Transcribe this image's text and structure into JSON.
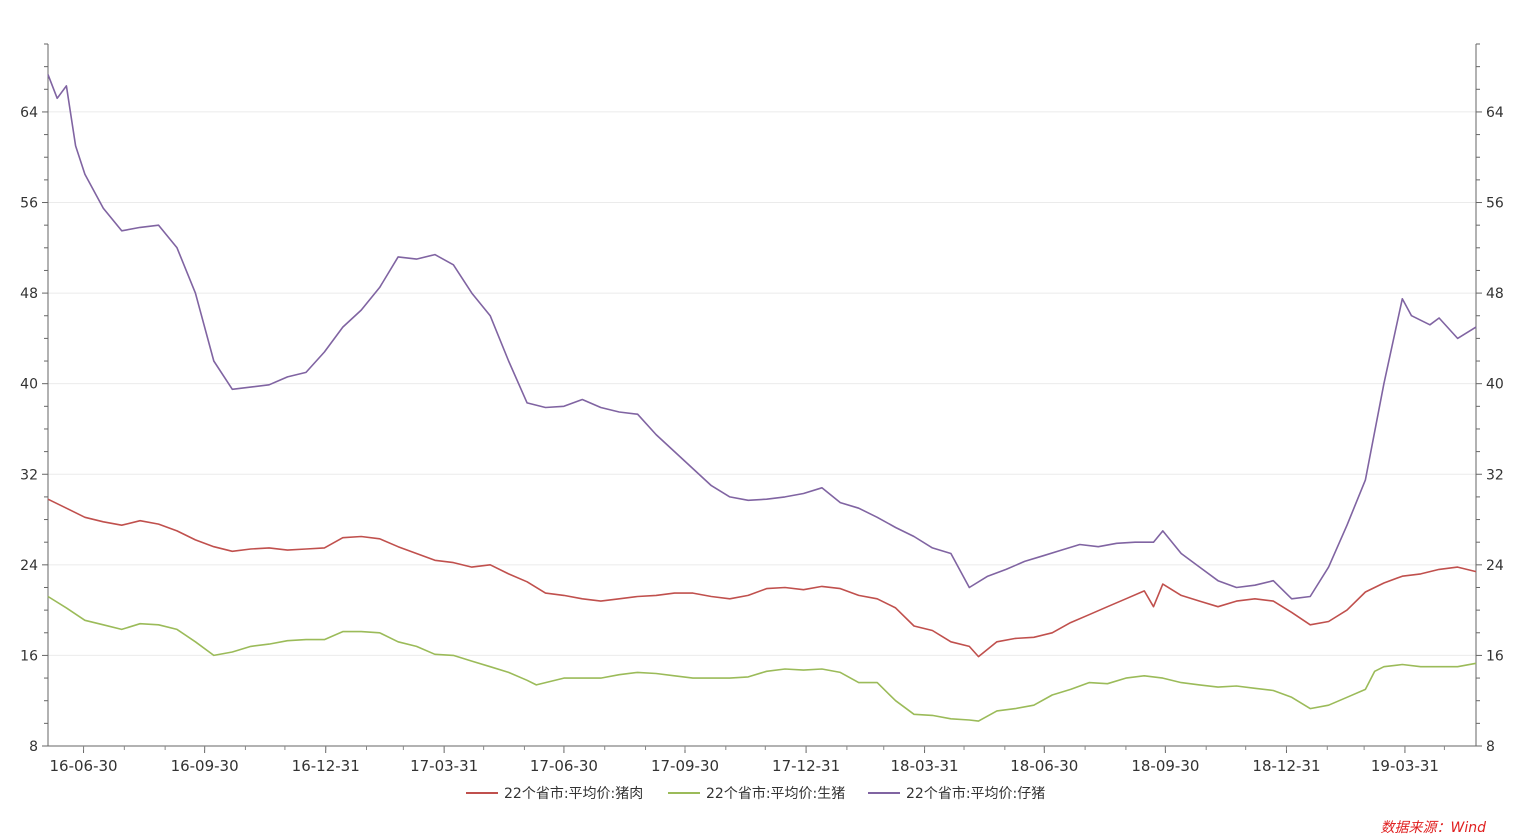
{
  "chart_data": {
    "type": "line",
    "title": "",
    "xlabel": "",
    "ylabel": "",
    "ylim": [
      8,
      70
    ],
    "y_ticks": [
      8,
      16,
      24,
      32,
      40,
      48,
      56,
      64
    ],
    "x_range": [
      "2016-06-03",
      "2019-05-24"
    ],
    "x_tick_labels": [
      {
        "date": "2016-06-30",
        "label": "16-06-30"
      },
      {
        "date": "2016-09-30",
        "label": "16-09-30"
      },
      {
        "date": "2016-12-31",
        "label": "16-12-31"
      },
      {
        "date": "2017-03-31",
        "label": "17-03-31"
      },
      {
        "date": "2017-06-30",
        "label": "17-06-30"
      },
      {
        "date": "2017-09-30",
        "label": "17-09-30"
      },
      {
        "date": "2017-12-31",
        "label": "17-12-31"
      },
      {
        "date": "2018-03-31",
        "label": "18-03-31"
      },
      {
        "date": "2018-06-30",
        "label": "18-06-30"
      },
      {
        "date": "2018-09-30",
        "label": "18-09-30"
      },
      {
        "date": "2018-12-31",
        "label": "18-12-31"
      },
      {
        "date": "2019-03-31",
        "label": "19-03-31"
      }
    ],
    "grid": true,
    "legend_position": "bottom",
    "source_note": "数据来源：Wind",
    "series": [
      {
        "name": "22个省市:平均价:猪肉",
        "color": "#c0504d",
        "points": [
          [
            "2016-06-03",
            29.8
          ],
          [
            "2016-06-17",
            29.0
          ],
          [
            "2016-07-01",
            28.2
          ],
          [
            "2016-07-15",
            27.8
          ],
          [
            "2016-07-29",
            27.5
          ],
          [
            "2016-08-12",
            27.9
          ],
          [
            "2016-08-26",
            27.6
          ],
          [
            "2016-09-09",
            27.0
          ],
          [
            "2016-09-23",
            26.2
          ],
          [
            "2016-10-07",
            25.6
          ],
          [
            "2016-10-21",
            25.2
          ],
          [
            "2016-11-04",
            25.4
          ],
          [
            "2016-11-18",
            25.5
          ],
          [
            "2016-12-02",
            25.3
          ],
          [
            "2016-12-16",
            25.4
          ],
          [
            "2016-12-30",
            25.5
          ],
          [
            "2017-01-13",
            26.4
          ],
          [
            "2017-01-27",
            26.5
          ],
          [
            "2017-02-10",
            26.3
          ],
          [
            "2017-02-24",
            25.6
          ],
          [
            "2017-03-10",
            25.0
          ],
          [
            "2017-03-24",
            24.4
          ],
          [
            "2017-04-07",
            24.2
          ],
          [
            "2017-04-21",
            23.8
          ],
          [
            "2017-05-05",
            24.0
          ],
          [
            "2017-05-19",
            23.2
          ],
          [
            "2017-06-02",
            22.5
          ],
          [
            "2017-06-16",
            21.5
          ],
          [
            "2017-06-30",
            21.3
          ],
          [
            "2017-07-14",
            21.0
          ],
          [
            "2017-07-28",
            20.8
          ],
          [
            "2017-08-11",
            21.0
          ],
          [
            "2017-08-25",
            21.2
          ],
          [
            "2017-09-08",
            21.3
          ],
          [
            "2017-09-22",
            21.5
          ],
          [
            "2017-10-06",
            21.5
          ],
          [
            "2017-10-20",
            21.2
          ],
          [
            "2017-11-03",
            21.0
          ],
          [
            "2017-11-17",
            21.3
          ],
          [
            "2017-12-01",
            21.9
          ],
          [
            "2017-12-15",
            22.0
          ],
          [
            "2017-12-29",
            21.8
          ],
          [
            "2018-01-12",
            22.1
          ],
          [
            "2018-01-26",
            21.9
          ],
          [
            "2018-02-09",
            21.3
          ],
          [
            "2018-02-23",
            21.0
          ],
          [
            "2018-03-09",
            20.2
          ],
          [
            "2018-03-23",
            18.6
          ],
          [
            "2018-04-06",
            18.2
          ],
          [
            "2018-04-20",
            17.2
          ],
          [
            "2018-05-04",
            16.8
          ],
          [
            "2018-05-11",
            15.9
          ],
          [
            "2018-05-25",
            17.2
          ],
          [
            "2018-06-08",
            17.5
          ],
          [
            "2018-06-22",
            17.6
          ],
          [
            "2018-07-06",
            18.0
          ],
          [
            "2018-07-20",
            18.9
          ],
          [
            "2018-08-03",
            19.6
          ],
          [
            "2018-08-17",
            20.3
          ],
          [
            "2018-08-31",
            21.0
          ],
          [
            "2018-09-14",
            21.7
          ],
          [
            "2018-09-21",
            20.3
          ],
          [
            "2018-09-28",
            22.3
          ],
          [
            "2018-10-12",
            21.3
          ],
          [
            "2018-10-26",
            20.8
          ],
          [
            "2018-11-09",
            20.3
          ],
          [
            "2018-11-23",
            20.8
          ],
          [
            "2018-12-07",
            21.0
          ],
          [
            "2018-12-21",
            20.8
          ],
          [
            "2019-01-04",
            19.8
          ],
          [
            "2019-01-18",
            18.7
          ],
          [
            "2019-02-01",
            19.0
          ],
          [
            "2019-02-15",
            20.0
          ],
          [
            "2019-03-01",
            21.6
          ],
          [
            "2019-03-15",
            22.4
          ],
          [
            "2019-03-29",
            23.0
          ],
          [
            "2019-04-12",
            23.2
          ],
          [
            "2019-04-26",
            23.6
          ],
          [
            "2019-05-10",
            23.8
          ],
          [
            "2019-05-24",
            23.4
          ]
        ]
      },
      {
        "name": "22个省市:平均价:生猪",
        "color": "#9bbb59",
        "points": [
          [
            "2016-06-03",
            21.2
          ],
          [
            "2016-06-17",
            20.2
          ],
          [
            "2016-07-01",
            19.1
          ],
          [
            "2016-07-15",
            18.7
          ],
          [
            "2016-07-29",
            18.3
          ],
          [
            "2016-08-12",
            18.8
          ],
          [
            "2016-08-26",
            18.7
          ],
          [
            "2016-09-09",
            18.3
          ],
          [
            "2016-09-23",
            17.2
          ],
          [
            "2016-10-07",
            16.0
          ],
          [
            "2016-10-21",
            16.3
          ],
          [
            "2016-11-04",
            16.8
          ],
          [
            "2016-11-18",
            17.0
          ],
          [
            "2016-12-02",
            17.3
          ],
          [
            "2016-12-16",
            17.4
          ],
          [
            "2016-12-30",
            17.4
          ],
          [
            "2017-01-13",
            18.1
          ],
          [
            "2017-01-27",
            18.1
          ],
          [
            "2017-02-10",
            18.0
          ],
          [
            "2017-02-24",
            17.2
          ],
          [
            "2017-03-10",
            16.8
          ],
          [
            "2017-03-24",
            16.1
          ],
          [
            "2017-04-07",
            16.0
          ],
          [
            "2017-04-21",
            15.5
          ],
          [
            "2017-05-05",
            15.0
          ],
          [
            "2017-05-19",
            14.5
          ],
          [
            "2017-06-02",
            13.8
          ],
          [
            "2017-06-09",
            13.4
          ],
          [
            "2017-06-16",
            13.6
          ],
          [
            "2017-06-30",
            14.0
          ],
          [
            "2017-07-14",
            14.0
          ],
          [
            "2017-07-28",
            14.0
          ],
          [
            "2017-08-11",
            14.3
          ],
          [
            "2017-08-25",
            14.5
          ],
          [
            "2017-09-08",
            14.4
          ],
          [
            "2017-09-22",
            14.2
          ],
          [
            "2017-10-06",
            14.0
          ],
          [
            "2017-10-20",
            14.0
          ],
          [
            "2017-11-03",
            14.0
          ],
          [
            "2017-11-17",
            14.1
          ],
          [
            "2017-12-01",
            14.6
          ],
          [
            "2017-12-15",
            14.8
          ],
          [
            "2017-12-29",
            14.7
          ],
          [
            "2018-01-12",
            14.8
          ],
          [
            "2018-01-26",
            14.5
          ],
          [
            "2018-02-09",
            13.6
          ],
          [
            "2018-02-23",
            13.6
          ],
          [
            "2018-03-09",
            12.0
          ],
          [
            "2018-03-23",
            10.8
          ],
          [
            "2018-04-06",
            10.7
          ],
          [
            "2018-04-20",
            10.4
          ],
          [
            "2018-05-04",
            10.3
          ],
          [
            "2018-05-11",
            10.2
          ],
          [
            "2018-05-25",
            11.1
          ],
          [
            "2018-06-08",
            11.3
          ],
          [
            "2018-06-22",
            11.6
          ],
          [
            "2018-07-06",
            12.5
          ],
          [
            "2018-07-20",
            13.0
          ],
          [
            "2018-08-03",
            13.6
          ],
          [
            "2018-08-17",
            13.5
          ],
          [
            "2018-08-31",
            14.0
          ],
          [
            "2018-09-14",
            14.2
          ],
          [
            "2018-09-28",
            14.0
          ],
          [
            "2018-10-12",
            13.6
          ],
          [
            "2018-10-26",
            13.4
          ],
          [
            "2018-11-09",
            13.2
          ],
          [
            "2018-11-23",
            13.3
          ],
          [
            "2018-12-07",
            13.1
          ],
          [
            "2018-12-21",
            12.9
          ],
          [
            "2019-01-04",
            12.3
          ],
          [
            "2019-01-18",
            11.3
          ],
          [
            "2019-02-01",
            11.6
          ],
          [
            "2019-02-15",
            12.3
          ],
          [
            "2019-03-01",
            13.0
          ],
          [
            "2019-03-08",
            14.6
          ],
          [
            "2019-03-15",
            15.0
          ],
          [
            "2019-03-29",
            15.2
          ],
          [
            "2019-04-12",
            15.0
          ],
          [
            "2019-04-26",
            15.0
          ],
          [
            "2019-05-10",
            15.0
          ],
          [
            "2019-05-24",
            15.3
          ]
        ]
      },
      {
        "name": "22个省市:平均价:仔猪",
        "color": "#8064a2",
        "points": [
          [
            "2016-06-03",
            67.3
          ],
          [
            "2016-06-10",
            65.2
          ],
          [
            "2016-06-17",
            66.3
          ],
          [
            "2016-06-24",
            61.0
          ],
          [
            "2016-07-01",
            58.5
          ],
          [
            "2016-07-15",
            55.5
          ],
          [
            "2016-07-29",
            53.5
          ],
          [
            "2016-08-12",
            53.8
          ],
          [
            "2016-08-26",
            54.0
          ],
          [
            "2016-09-09",
            52.0
          ],
          [
            "2016-09-23",
            48.0
          ],
          [
            "2016-10-07",
            42.0
          ],
          [
            "2016-10-21",
            39.5
          ],
          [
            "2016-11-04",
            39.7
          ],
          [
            "2016-11-18",
            39.9
          ],
          [
            "2016-12-02",
            40.6
          ],
          [
            "2016-12-16",
            41.0
          ],
          [
            "2016-12-30",
            42.8
          ],
          [
            "2017-01-13",
            45.0
          ],
          [
            "2017-01-27",
            46.5
          ],
          [
            "2017-02-10",
            48.5
          ],
          [
            "2017-02-24",
            51.2
          ],
          [
            "2017-03-10",
            51.0
          ],
          [
            "2017-03-24",
            51.4
          ],
          [
            "2017-04-07",
            50.5
          ],
          [
            "2017-04-21",
            48.0
          ],
          [
            "2017-05-05",
            46.0
          ],
          [
            "2017-05-19",
            42.0
          ],
          [
            "2017-06-02",
            38.3
          ],
          [
            "2017-06-16",
            37.9
          ],
          [
            "2017-06-30",
            38.0
          ],
          [
            "2017-07-14",
            38.6
          ],
          [
            "2017-07-28",
            37.9
          ],
          [
            "2017-08-11",
            37.5
          ],
          [
            "2017-08-25",
            37.3
          ],
          [
            "2017-09-08",
            35.5
          ],
          [
            "2017-09-22",
            34.0
          ],
          [
            "2017-10-06",
            32.5
          ],
          [
            "2017-10-20",
            31.0
          ],
          [
            "2017-11-03",
            30.0
          ],
          [
            "2017-11-17",
            29.7
          ],
          [
            "2017-12-01",
            29.8
          ],
          [
            "2017-12-15",
            30.0
          ],
          [
            "2017-12-29",
            30.3
          ],
          [
            "2018-01-12",
            30.8
          ],
          [
            "2018-01-26",
            29.5
          ],
          [
            "2018-02-09",
            29.0
          ],
          [
            "2018-02-23",
            28.2
          ],
          [
            "2018-03-09",
            27.3
          ],
          [
            "2018-03-23",
            26.5
          ],
          [
            "2018-04-06",
            25.5
          ],
          [
            "2018-04-20",
            25.0
          ],
          [
            "2018-05-04",
            22.0
          ],
          [
            "2018-05-18",
            23.0
          ],
          [
            "2018-06-01",
            23.6
          ],
          [
            "2018-06-15",
            24.3
          ],
          [
            "2018-06-29",
            24.8
          ],
          [
            "2018-07-13",
            25.3
          ],
          [
            "2018-07-27",
            25.8
          ],
          [
            "2018-08-10",
            25.6
          ],
          [
            "2018-08-24",
            25.9
          ],
          [
            "2018-09-07",
            26.0
          ],
          [
            "2018-09-21",
            26.0
          ],
          [
            "2018-09-28",
            27.0
          ],
          [
            "2018-10-12",
            25.0
          ],
          [
            "2018-10-26",
            23.8
          ],
          [
            "2018-11-09",
            22.6
          ],
          [
            "2018-11-23",
            22.0
          ],
          [
            "2018-12-07",
            22.2
          ],
          [
            "2018-12-21",
            22.6
          ],
          [
            "2019-01-04",
            21.0
          ],
          [
            "2019-01-18",
            21.2
          ],
          [
            "2019-02-01",
            23.8
          ],
          [
            "2019-02-15",
            27.5
          ],
          [
            "2019-03-01",
            31.5
          ],
          [
            "2019-03-15",
            40.0
          ],
          [
            "2019-03-29",
            47.5
          ],
          [
            "2019-04-05",
            46.0
          ],
          [
            "2019-04-19",
            45.2
          ],
          [
            "2019-04-26",
            45.8
          ],
          [
            "2019-05-10",
            44.0
          ],
          [
            "2019-05-24",
            45.0
          ]
        ]
      }
    ]
  }
}
